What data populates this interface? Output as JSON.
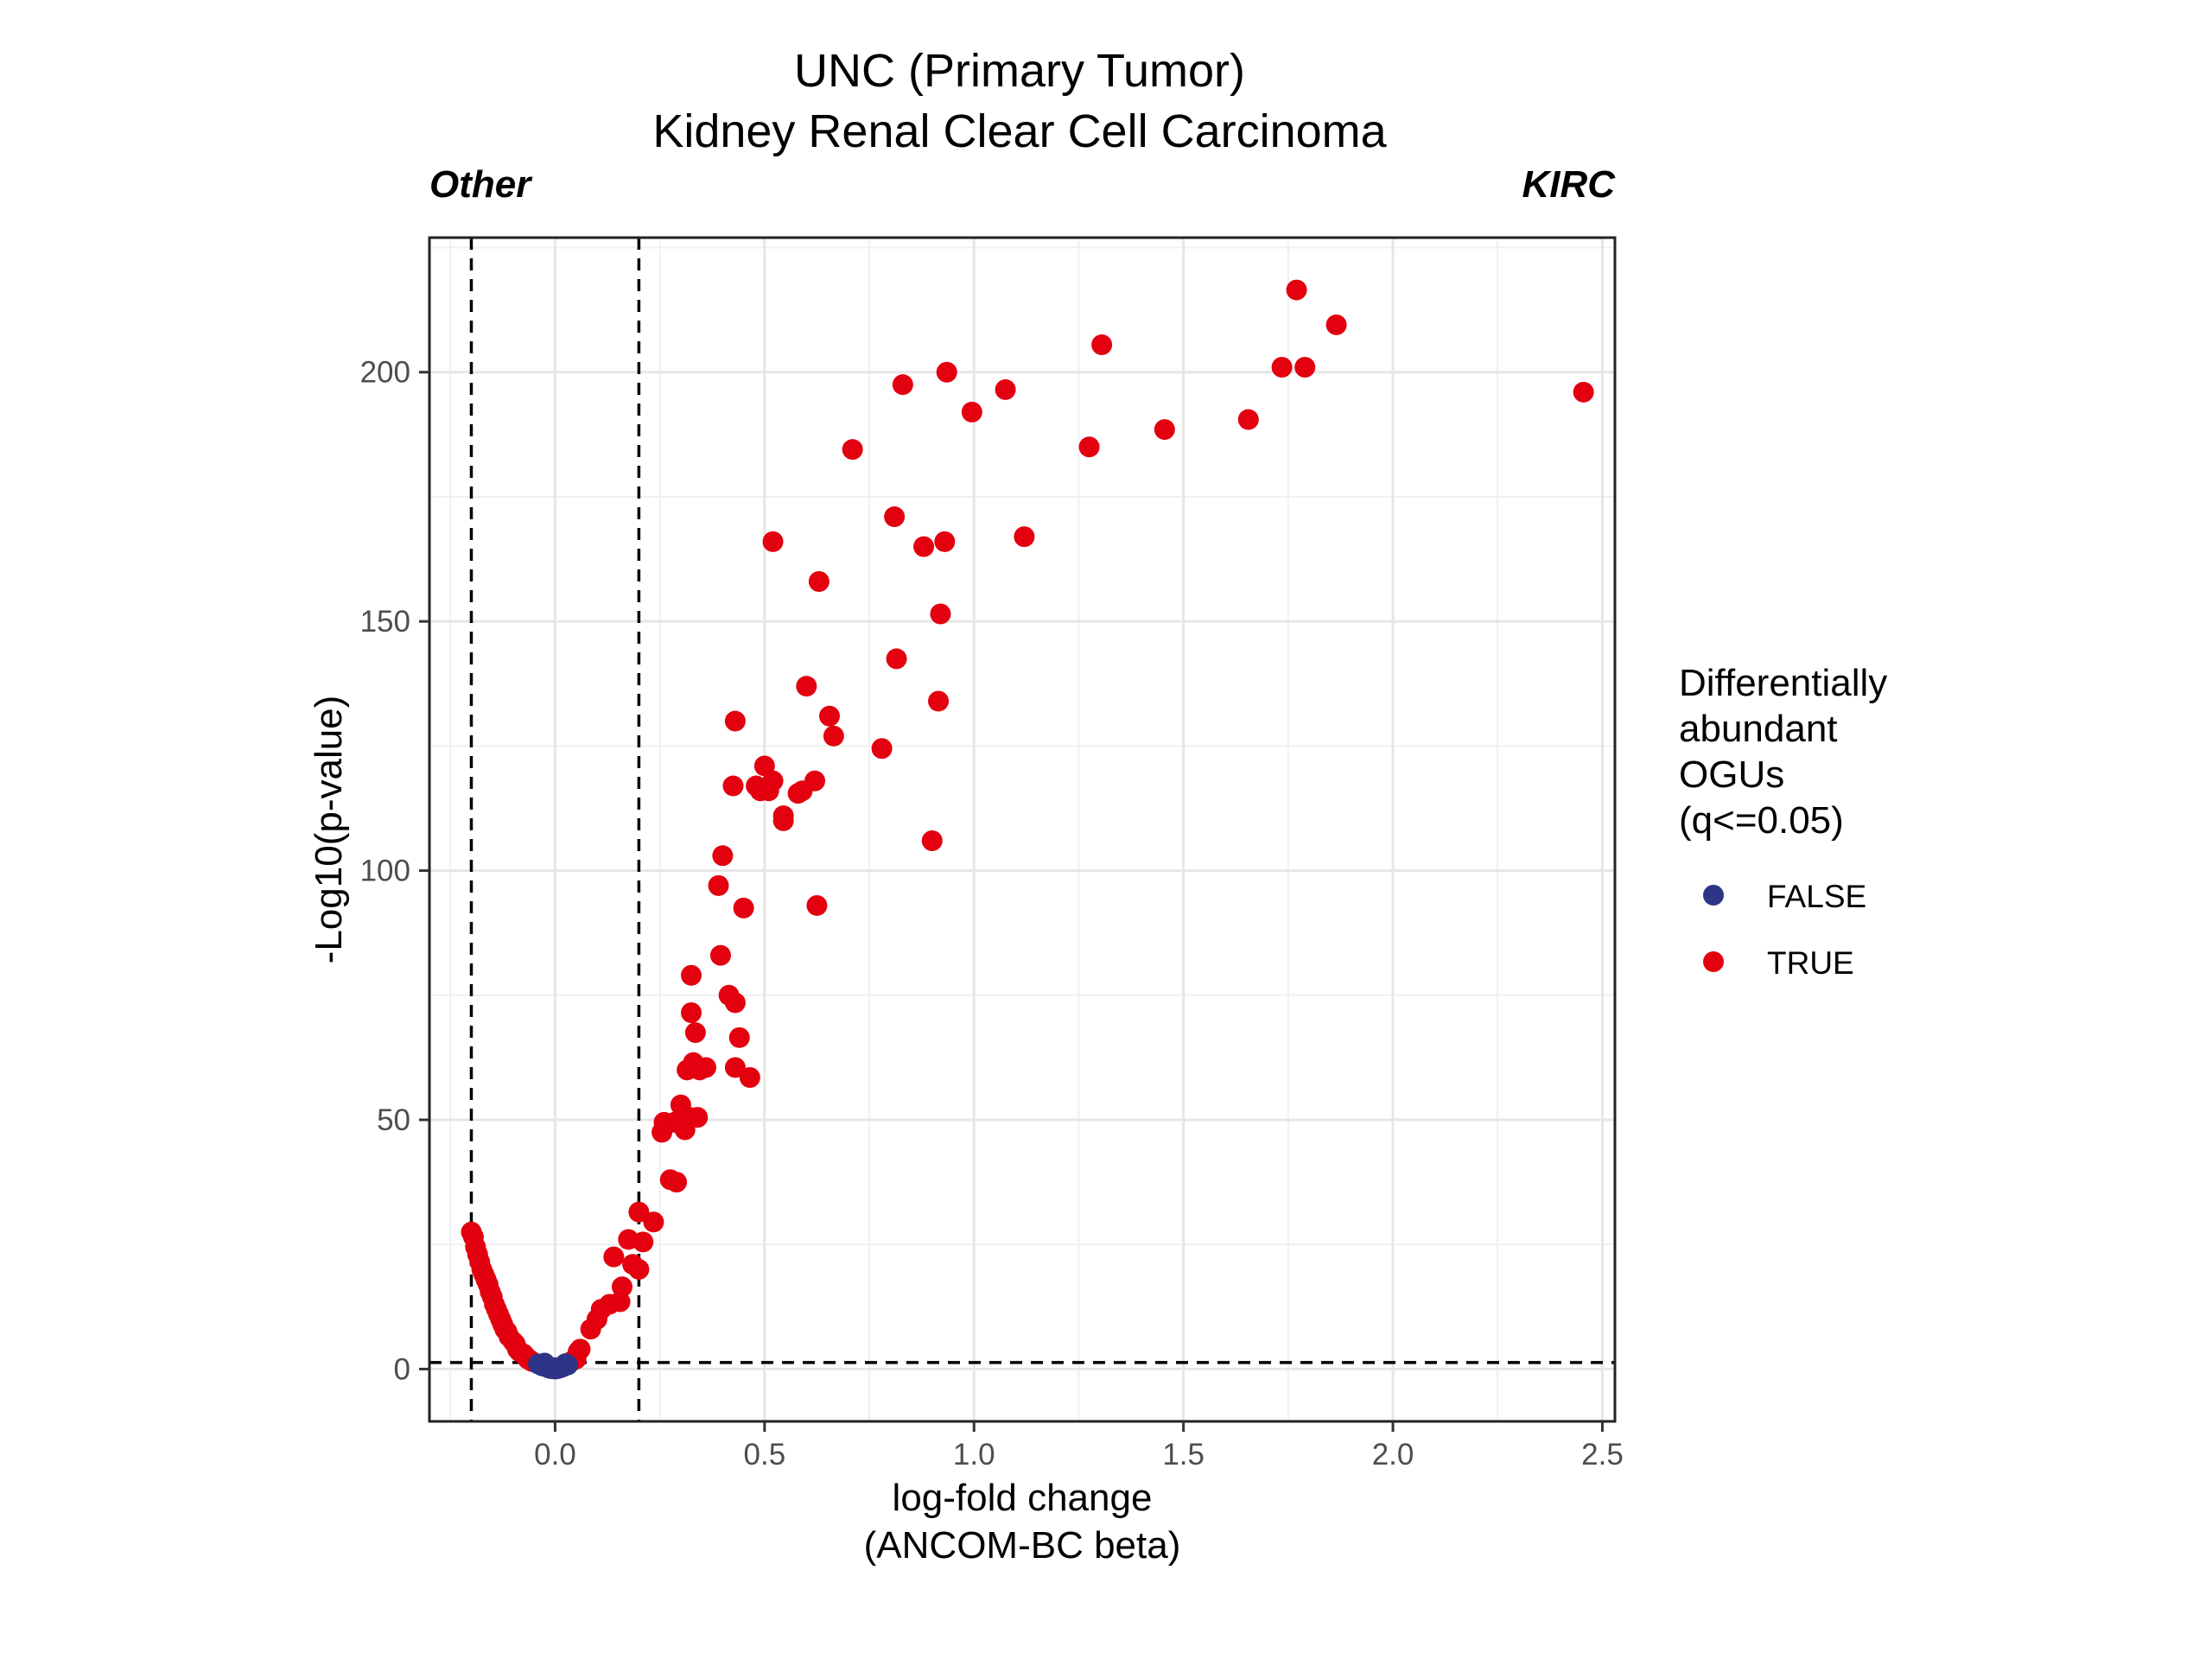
{
  "chart_data": {
    "type": "scatter",
    "title": "UNC (Primary Tumor)",
    "subtitle": "Kidney Renal Clear Cell Carcinoma",
    "left_annotation": "Other",
    "right_annotation": "KIRC",
    "xlabel": "log-fold change",
    "xlabel_sub": "(ANCOM-BC beta)",
    "ylabel": "-Log10(p-value)",
    "xlim": [
      -0.3,
      2.53
    ],
    "ylim": [
      -10.5,
      227
    ],
    "x_ticks": [
      0.0,
      0.5,
      1.0,
      1.5,
      2.0,
      2.5
    ],
    "x_tick_labels": [
      "0.0",
      "0.5",
      "1.0",
      "1.5",
      "2.0",
      "2.5"
    ],
    "y_ticks": [
      0,
      50,
      100,
      150,
      200
    ],
    "y_tick_labels": [
      "0",
      "50",
      "100",
      "150",
      "200"
    ],
    "grid": true,
    "reference_lines": {
      "vertical": [
        -0.2,
        0.2
      ],
      "horizontal": [
        1.3
      ]
    },
    "legend": {
      "title": [
        "Differentially",
        "abundant",
        "OGUs",
        "(q<=0.05)"
      ],
      "placement": "right",
      "entries": [
        {
          "label": "FALSE",
          "color": "#2e3586"
        },
        {
          "label": "TRUE",
          "color": "#e3000f"
        }
      ]
    },
    "series": [
      {
        "name": "FALSE",
        "color": "#2e3586",
        "points": [
          [
            -0.04,
            1.0
          ],
          [
            -0.03,
            0.6
          ],
          [
            -0.02,
            0.4
          ],
          [
            -0.015,
            0.2
          ],
          [
            -0.01,
            0.1
          ],
          [
            -0.005,
            0.05
          ],
          [
            0.0,
            0.0
          ],
          [
            0.005,
            0.05
          ],
          [
            0.01,
            0.2
          ],
          [
            0.015,
            0.3
          ],
          [
            0.02,
            0.5
          ],
          [
            0.03,
            0.8
          ],
          [
            -0.025,
            1.2
          ],
          [
            0.025,
            1.1
          ],
          [
            0.0,
            0.3
          ]
        ]
      },
      {
        "name": "TRUE",
        "color": "#e3000f",
        "points": [
          [
            -0.2,
            27.5
          ],
          [
            -0.195,
            26.5
          ],
          [
            -0.19,
            24.5
          ],
          [
            -0.185,
            23
          ],
          [
            -0.18,
            21.5
          ],
          [
            -0.175,
            20
          ],
          [
            -0.17,
            19
          ],
          [
            -0.165,
            18
          ],
          [
            -0.16,
            17
          ],
          [
            -0.155,
            15.5
          ],
          [
            -0.15,
            14.5
          ],
          [
            -0.145,
            13
          ],
          [
            -0.14,
            12
          ],
          [
            -0.135,
            11
          ],
          [
            -0.13,
            10
          ],
          [
            -0.125,
            9
          ],
          [
            -0.12,
            8
          ],
          [
            -0.115,
            7.5
          ],
          [
            -0.11,
            6.5
          ],
          [
            -0.1,
            5.5
          ],
          [
            -0.095,
            5
          ],
          [
            -0.09,
            4
          ],
          [
            -0.085,
            3.5
          ],
          [
            -0.075,
            3
          ],
          [
            -0.07,
            2.5
          ],
          [
            -0.065,
            2
          ],
          [
            -0.06,
            1.8
          ],
          [
            -0.055,
            1.5
          ],
          [
            0.04,
            1.6
          ],
          [
            0.05,
            2
          ],
          [
            0.055,
            3.5
          ],
          [
            0.06,
            4
          ],
          [
            0.085,
            8
          ],
          [
            0.1,
            10
          ],
          [
            0.11,
            12
          ],
          [
            0.13,
            13
          ],
          [
            0.14,
            22.5
          ],
          [
            0.155,
            13.5
          ],
          [
            0.16,
            16.5
          ],
          [
            0.175,
            26
          ],
          [
            0.185,
            21
          ],
          [
            0.2,
            31.5
          ],
          [
            0.2,
            20
          ],
          [
            0.21,
            25.5
          ],
          [
            0.235,
            29.5
          ],
          [
            0.255,
            47.5
          ],
          [
            0.26,
            49.5
          ],
          [
            0.275,
            38
          ],
          [
            0.285,
            49.5
          ],
          [
            0.29,
            37.5
          ],
          [
            0.3,
            53
          ],
          [
            0.305,
            51
          ],
          [
            0.31,
            48
          ],
          [
            0.315,
            60
          ],
          [
            0.32,
            50.5
          ],
          [
            0.325,
            79
          ],
          [
            0.325,
            71.5
          ],
          [
            0.33,
            61.5
          ],
          [
            0.335,
            67.5
          ],
          [
            0.345,
            60
          ],
          [
            0.34,
            50.5
          ],
          [
            0.36,
            60.5
          ],
          [
            0.39,
            97
          ],
          [
            0.395,
            83
          ],
          [
            0.4,
            103
          ],
          [
            0.415,
            75
          ],
          [
            0.425,
            117
          ],
          [
            0.43,
            73.5
          ],
          [
            0.43,
            130
          ],
          [
            0.43,
            60.5
          ],
          [
            0.44,
            66.5
          ],
          [
            0.45,
            92.5
          ],
          [
            0.465,
            58.5
          ],
          [
            0.48,
            117
          ],
          [
            0.49,
            116
          ],
          [
            0.5,
            121
          ],
          [
            0.51,
            116
          ],
          [
            0.52,
            118
          ],
          [
            0.52,
            166
          ],
          [
            0.545,
            110
          ],
          [
            0.545,
            111
          ],
          [
            0.58,
            115.5
          ],
          [
            0.59,
            116
          ],
          [
            0.6,
            137
          ],
          [
            0.62,
            118
          ],
          [
            0.625,
            93
          ],
          [
            0.63,
            158
          ],
          [
            0.655,
            131
          ],
          [
            0.665,
            127
          ],
          [
            0.71,
            184.5
          ],
          [
            0.78,
            124.5
          ],
          [
            0.81,
            171
          ],
          [
            0.815,
            142.5
          ],
          [
            0.83,
            197.5
          ],
          [
            0.88,
            165
          ],
          [
            0.9,
            106
          ],
          [
            0.915,
            134
          ],
          [
            0.92,
            151.5
          ],
          [
            0.93,
            166
          ],
          [
            0.935,
            200
          ],
          [
            0.995,
            192
          ],
          [
            1.075,
            196.5
          ],
          [
            1.12,
            167
          ],
          [
            1.275,
            185
          ],
          [
            1.305,
            205.5
          ],
          [
            1.455,
            188.5
          ],
          [
            1.655,
            190.5
          ],
          [
            1.735,
            201
          ],
          [
            1.77,
            216.5
          ],
          [
            1.79,
            201
          ],
          [
            1.865,
            209.5
          ],
          [
            2.455,
            196
          ]
        ]
      }
    ]
  }
}
